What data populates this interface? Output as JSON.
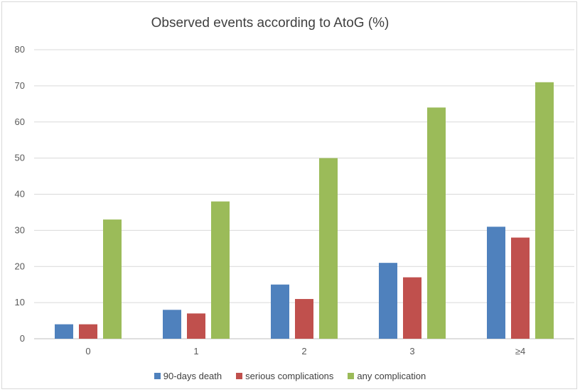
{
  "chart_data": {
    "type": "bar",
    "title": "Observed events according to AtoG (%)",
    "categories": [
      "0",
      "1",
      "2",
      "3",
      "≥4"
    ],
    "series": [
      {
        "name": "90-days death",
        "color": "#4f81bd",
        "values": [
          4,
          8,
          15,
          21,
          31
        ]
      },
      {
        "name": "serious complications",
        "color": "#c0504d",
        "values": [
          4,
          7,
          11,
          17,
          28
        ]
      },
      {
        "name": "any complication",
        "color": "#9bbb59",
        "values": [
          33,
          38,
          50,
          64,
          71
        ]
      }
    ],
    "ylim": [
      0,
      80
    ],
    "yticks": [
      0,
      10,
      20,
      30,
      40,
      50,
      60,
      70,
      80
    ],
    "grid": true,
    "legend_position": "bottom"
  }
}
